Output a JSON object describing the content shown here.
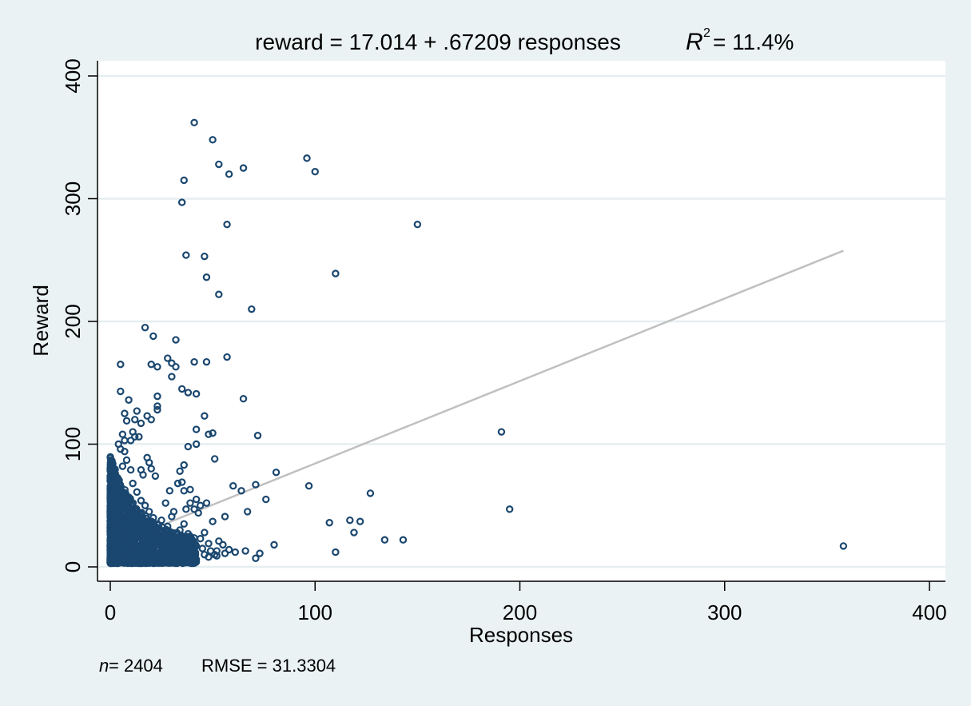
{
  "chart_data": {
    "type": "scatter",
    "title_main": "reward = 17.014 + .67209 responses",
    "title_r2_symbol": "R",
    "title_r2_exp": "2",
    "title_r2_value": " = 11.4%",
    "xlabel": "Responses",
    "ylabel": "Reward",
    "xlim": [
      0,
      400
    ],
    "ylim": [
      0,
      400
    ],
    "xticks": [
      "0",
      "100",
      "200",
      "300",
      "400"
    ],
    "yticks": [
      "0",
      "100",
      "200",
      "300",
      "400"
    ],
    "grid": "horizontal",
    "footer": {
      "n_symbol": "n",
      "n_text": " = 2404",
      "rmse_text": "RMSE =  31.3304"
    },
    "fit_line": {
      "intercept": 17.014,
      "slope": 0.67209,
      "x_range": [
        0,
        358
      ]
    },
    "marker_color": "#1a476f",
    "line_color": "#c0c0c0",
    "points": [
      [
        41,
        362
      ],
      [
        50,
        348
      ],
      [
        96,
        333
      ],
      [
        53,
        328
      ],
      [
        65,
        325
      ],
      [
        58,
        320
      ],
      [
        100,
        322
      ],
      [
        36,
        315
      ],
      [
        35,
        297
      ],
      [
        57,
        279
      ],
      [
        150,
        279
      ],
      [
        37,
        254
      ],
      [
        46,
        253
      ],
      [
        47,
        236
      ],
      [
        110,
        239
      ],
      [
        53,
        222
      ],
      [
        69,
        210
      ],
      [
        17,
        195
      ],
      [
        21,
        188
      ],
      [
        32,
        185
      ],
      [
        5,
        165
      ],
      [
        20,
        165
      ],
      [
        23,
        163
      ],
      [
        28,
        170
      ],
      [
        30,
        166
      ],
      [
        32,
        163
      ],
      [
        57,
        171
      ],
      [
        41,
        167
      ],
      [
        47,
        167
      ],
      [
        30,
        155
      ],
      [
        35,
        145
      ],
      [
        38,
        142
      ],
      [
        42,
        141
      ],
      [
        5,
        143
      ],
      [
        9,
        136
      ],
      [
        23,
        139
      ],
      [
        23,
        131
      ],
      [
        23,
        128
      ],
      [
        65,
        137
      ],
      [
        18,
        123
      ],
      [
        20,
        120
      ],
      [
        13,
        127
      ],
      [
        12,
        120
      ],
      [
        15,
        117
      ],
      [
        46,
        123
      ],
      [
        7,
        125
      ],
      [
        8,
        119
      ],
      [
        42,
        112
      ],
      [
        48,
        108
      ],
      [
        50,
        109
      ],
      [
        72,
        107
      ],
      [
        11,
        110
      ],
      [
        12,
        106
      ],
      [
        10,
        103
      ],
      [
        14,
        106
      ],
      [
        6,
        108
      ],
      [
        7,
        103
      ],
      [
        4,
        100
      ],
      [
        5,
        96
      ],
      [
        7,
        94
      ],
      [
        42,
        100
      ],
      [
        38,
        98
      ],
      [
        191,
        110
      ],
      [
        51,
        88
      ],
      [
        36,
        83
      ],
      [
        34,
        78
      ],
      [
        18,
        89
      ],
      [
        19,
        85
      ],
      [
        15,
        79
      ],
      [
        20,
        80
      ],
      [
        16,
        75
      ],
      [
        22,
        74
      ],
      [
        81,
        77
      ],
      [
        71,
        67
      ],
      [
        60,
        66
      ],
      [
        97,
        66
      ],
      [
        64,
        62
      ],
      [
        127,
        60
      ],
      [
        76,
        55
      ],
      [
        35,
        69
      ],
      [
        29,
        62
      ],
      [
        33,
        68
      ],
      [
        36,
        62
      ],
      [
        39,
        63
      ],
      [
        42,
        55
      ],
      [
        47,
        52
      ],
      [
        44,
        50
      ],
      [
        39,
        52
      ],
      [
        41,
        47
      ],
      [
        43,
        44
      ],
      [
        31,
        45
      ],
      [
        37,
        47
      ],
      [
        30,
        41
      ],
      [
        27,
        52
      ],
      [
        50,
        37
      ],
      [
        56,
        41
      ],
      [
        67,
        45
      ],
      [
        195,
        47
      ],
      [
        107,
        36
      ],
      [
        117,
        38
      ],
      [
        122,
        37
      ],
      [
        119,
        28
      ],
      [
        134,
        22
      ],
      [
        143,
        22
      ],
      [
        110,
        12
      ],
      [
        80,
        18
      ],
      [
        73,
        11
      ],
      [
        71,
        7
      ],
      [
        66,
        13
      ],
      [
        61,
        12
      ],
      [
        58,
        14
      ],
      [
        55,
        18
      ],
      [
        53,
        21
      ],
      [
        52,
        13
      ],
      [
        51,
        10
      ],
      [
        49,
        13
      ],
      [
        48,
        8
      ],
      [
        45,
        15
      ],
      [
        46,
        10
      ],
      [
        42,
        6
      ],
      [
        40,
        13
      ],
      [
        37,
        17
      ],
      [
        35,
        20
      ],
      [
        33,
        19
      ],
      [
        31,
        15
      ],
      [
        29,
        23
      ],
      [
        27,
        30
      ],
      [
        26,
        25
      ],
      [
        24,
        28
      ],
      [
        22,
        21
      ],
      [
        20,
        27
      ],
      [
        19,
        33
      ],
      [
        18,
        19
      ],
      [
        17,
        25
      ],
      [
        16,
        37
      ],
      [
        15,
        30
      ],
      [
        14,
        41
      ],
      [
        13,
        27
      ],
      [
        12,
        47
      ],
      [
        11,
        22
      ],
      [
        10,
        36
      ],
      [
        9,
        52
      ],
      [
        8,
        31
      ],
      [
        7,
        58
      ],
      [
        6,
        24
      ],
      [
        5,
        42
      ],
      [
        4,
        18
      ],
      [
        3,
        29
      ],
      [
        2,
        63
      ],
      [
        2,
        13
      ],
      [
        1,
        7
      ],
      [
        3,
        71
      ],
      [
        6,
        82
      ],
      [
        8,
        87
      ],
      [
        10,
        79
      ],
      [
        11,
        68
      ],
      [
        13,
        61
      ],
      [
        15,
        54
      ],
      [
        17,
        50
      ],
      [
        19,
        45
      ],
      [
        21,
        40
      ],
      [
        23,
        35
      ],
      [
        25,
        38
      ],
      [
        28,
        33
      ],
      [
        30,
        28
      ],
      [
        32,
        24
      ],
      [
        34,
        30
      ],
      [
        36,
        35
      ],
      [
        38,
        27
      ],
      [
        40,
        22
      ],
      [
        42,
        17
      ],
      [
        44,
        23
      ],
      [
        46,
        28
      ],
      [
        48,
        19
      ],
      [
        52,
        9
      ],
      [
        56,
        11
      ],
      [
        358,
        17
      ],
      [
        1,
        5
      ],
      [
        2,
        8
      ],
      [
        3,
        10
      ],
      [
        4,
        6
      ]
    ]
  }
}
